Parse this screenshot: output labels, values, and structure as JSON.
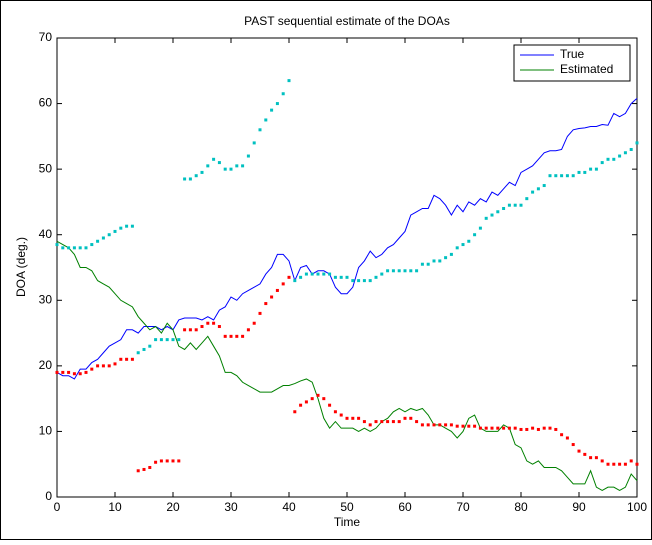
{
  "chart_data": {
    "type": "line",
    "title": "PAST sequential estimate of the DOAs",
    "xlabel": "Time",
    "ylabel": "DOA (deg.)",
    "xlim": [
      0,
      100
    ],
    "ylim": [
      0,
      70
    ],
    "xticks": [
      0,
      10,
      20,
      30,
      40,
      50,
      60,
      70,
      80,
      90,
      100
    ],
    "yticks": [
      0,
      10,
      20,
      30,
      40,
      50,
      60,
      70
    ],
    "grid": false,
    "legend": "upper-right",
    "x": [
      0,
      1,
      2,
      3,
      4,
      5,
      6,
      7,
      8,
      9,
      10,
      11,
      12,
      13,
      14,
      15,
      16,
      17,
      18,
      19,
      20,
      21,
      22,
      23,
      24,
      25,
      26,
      27,
      28,
      29,
      30,
      31,
      32,
      33,
      34,
      35,
      36,
      37,
      38,
      39,
      40,
      41,
      42,
      43,
      44,
      45,
      46,
      47,
      48,
      49,
      50,
      51,
      52,
      53,
      54,
      55,
      56,
      57,
      58,
      59,
      60,
      61,
      62,
      63,
      64,
      65,
      66,
      67,
      68,
      69,
      70,
      71,
      72,
      73,
      74,
      75,
      76,
      77,
      78,
      79,
      80,
      81,
      82,
      83,
      84,
      85,
      86,
      87,
      88,
      89,
      90,
      91,
      92,
      93,
      94,
      95,
      96,
      97,
      98,
      99,
      100
    ],
    "series": [
      {
        "name": "True",
        "color": "#0000ff",
        "style": "line",
        "values": [
          19,
          18.5,
          18.5,
          18,
          19.5,
          19.5,
          20.5,
          21,
          22,
          23,
          23.5,
          24,
          25.5,
          25.5,
          25,
          26,
          26,
          26,
          25.5,
          26,
          25.5,
          27,
          27.3,
          27.3,
          27.3,
          27,
          27.5,
          27,
          28.5,
          29,
          30.5,
          30,
          31,
          31.5,
          32,
          32.5,
          34,
          35,
          37,
          37,
          36,
          33,
          35,
          35.3,
          34,
          34.5,
          34.5,
          34,
          32,
          31,
          31,
          32,
          35,
          36,
          37.5,
          36.5,
          37,
          38,
          38.5,
          39.5,
          40.5,
          43,
          43.5,
          44,
          44,
          46,
          45.5,
          44.5,
          43,
          44.5,
          43.5,
          45,
          44.5,
          45.5,
          45,
          46.5,
          46,
          47,
          48,
          47.5,
          49.5,
          50,
          50.5,
          51.5,
          52.5,
          52.8,
          52.8,
          53,
          55,
          56,
          56.2,
          56.3,
          56.5,
          56.5,
          56.8,
          56.7,
          58.5,
          58,
          58.5,
          60,
          60.8
        ]
      },
      {
        "name": "Estimated",
        "color": "#008000",
        "style": "line",
        "values": [
          39,
          38.5,
          38,
          37,
          35,
          35,
          34.5,
          33,
          32.5,
          32,
          31,
          30,
          29.5,
          29,
          27.5,
          26.5,
          25.5,
          26,
          25,
          26.5,
          25.5,
          23,
          22.5,
          23.5,
          22.5,
          23.5,
          24.5,
          23,
          21.5,
          19,
          19,
          18.5,
          17.5,
          17,
          16.5,
          16,
          16,
          16,
          16.5,
          17,
          17,
          17.3,
          17.7,
          18,
          17.5,
          15,
          12,
          10.5,
          11.5,
          10.5,
          10.5,
          10.5,
          10,
          10.5,
          10,
          10.5,
          11.5,
          12,
          13,
          13.5,
          13,
          13.5,
          13.2,
          13.5,
          12.5,
          11,
          11,
          10.5,
          10,
          9,
          10,
          12,
          12.5,
          10.5,
          10,
          10,
          10,
          11,
          10.5,
          8,
          7.5,
          5.5,
          5,
          5.5,
          4.5,
          4.5,
          4.5,
          4,
          3,
          2,
          2,
          2,
          4,
          1.5,
          1,
          1.5,
          1.5,
          1,
          1.5,
          3.5,
          2.5
        ]
      },
      {
        "color": "#ff0000",
        "style": "dotted",
        "values": [
          19,
          19,
          19,
          18.8,
          18.8,
          19,
          19.5,
          20,
          20,
          20,
          20.3,
          21,
          21,
          21,
          4,
          4.2,
          4.5,
          5.3,
          5.5,
          5.5,
          5.5,
          5.5,
          25.5,
          25.5,
          25.5,
          26,
          26.5,
          26.5,
          26,
          24.5,
          24.5,
          24.5,
          24.5,
          25.5,
          26.5,
          28,
          29.5,
          30.5,
          31.5,
          32.5,
          33.5,
          13,
          14,
          14.5,
          15,
          15.5,
          15,
          14,
          13,
          12.5,
          12,
          12,
          12,
          11.5,
          11,
          11.5,
          11.5,
          11.5,
          11.5,
          11.5,
          12,
          12,
          11.5,
          11,
          11,
          11,
          11,
          11,
          11,
          10.8,
          10.8,
          10.8,
          10.8,
          10.5,
          10.5,
          10.5,
          10.5,
          10.5,
          10.5,
          10.5,
          10.3,
          10.3,
          10.5,
          10.3,
          10.5,
          10.5,
          10.3,
          9.5,
          9,
          8,
          7,
          6.5,
          6,
          6,
          5.5,
          5,
          5,
          5,
          5,
          5.5,
          5
        ]
      },
      {
        "color": "#00c0c0",
        "style": "dotted",
        "values": [
          38.5,
          38,
          38,
          38,
          38,
          38,
          38.5,
          39,
          39.5,
          40,
          40.5,
          41,
          41.3,
          41.3,
          22,
          22.5,
          23,
          24,
          24,
          24,
          24,
          24,
          48.5,
          48.5,
          49,
          49.5,
          50.5,
          51.5,
          51,
          50,
          50,
          50.5,
          50.5,
          52,
          54,
          56,
          57.5,
          59,
          60,
          61.5,
          63.5,
          33,
          33.5,
          34,
          34,
          34,
          34,
          34,
          33.5,
          33.5,
          33.5,
          33,
          33,
          33,
          33,
          33.5,
          34,
          34.5,
          34.5,
          34.5,
          34.5,
          34.5,
          34.5,
          35.5,
          35.5,
          36,
          36,
          36.5,
          37,
          38,
          38.5,
          39,
          40,
          41,
          42.5,
          43,
          43.5,
          44,
          44.5,
          44.5,
          44.5,
          45.5,
          46.5,
          47,
          47.5,
          49,
          49,
          49,
          49,
          49,
          49.5,
          49.5,
          50,
          50,
          51,
          51.5,
          51.5,
          52,
          52.5,
          53,
          54
        ]
      }
    ]
  }
}
